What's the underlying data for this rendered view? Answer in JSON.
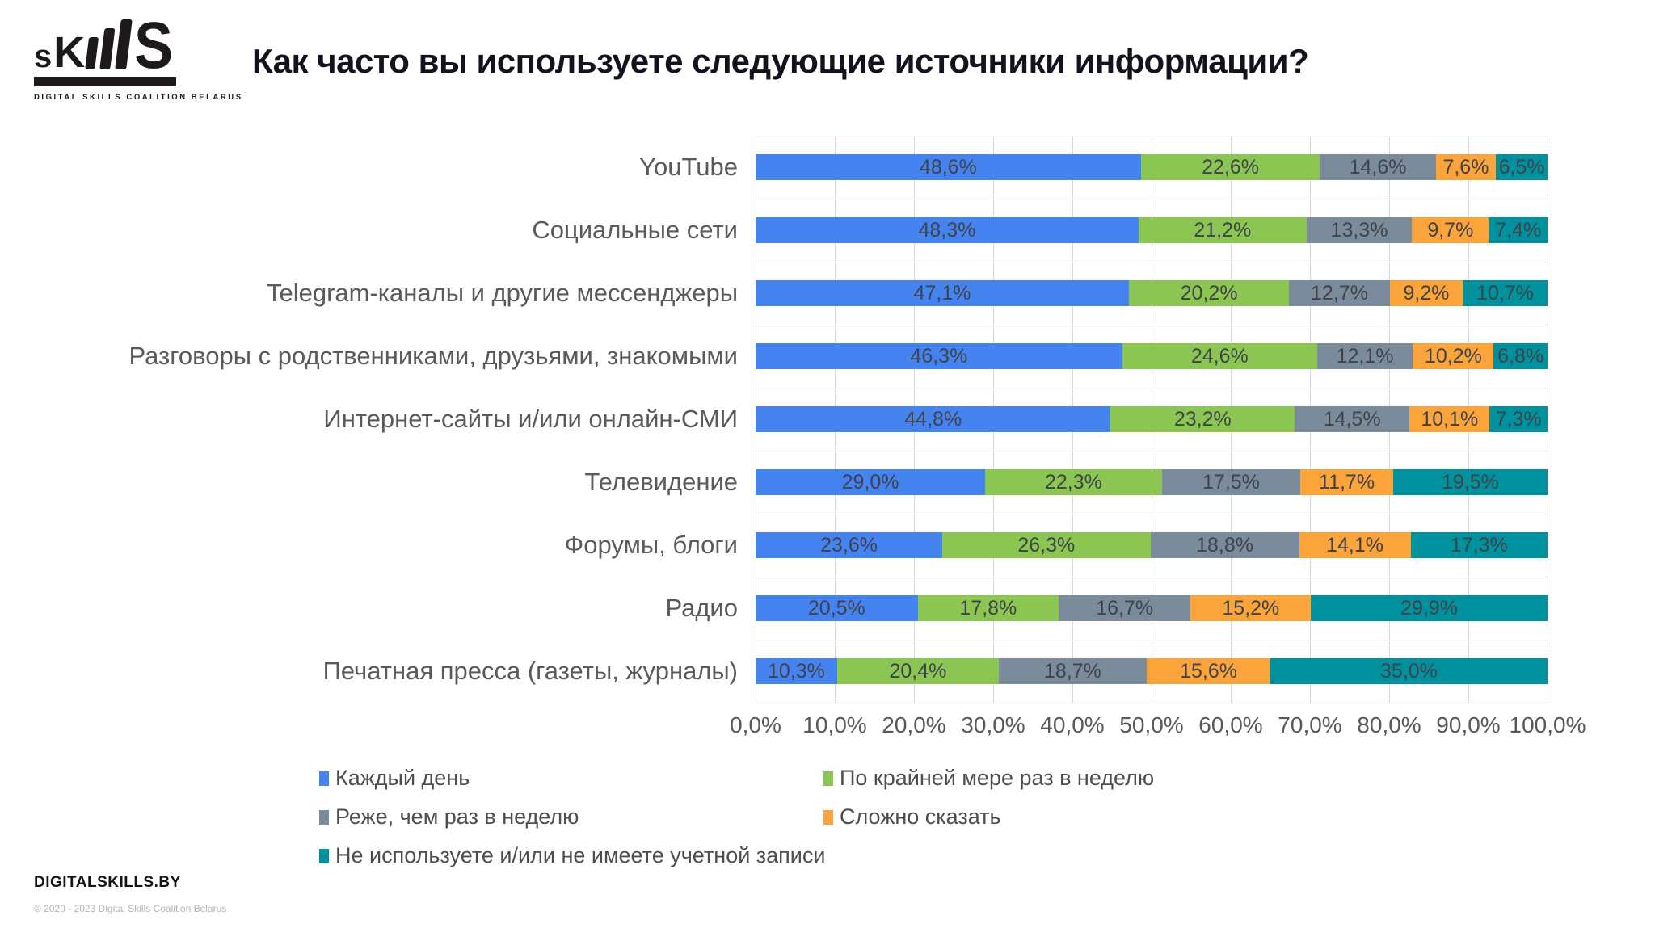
{
  "logo": {
    "text_left_s": "s",
    "text_k": "K",
    "text_big_s": "S",
    "subtext": "DIGITAL SKILLS COALITION BELARUS"
  },
  "title": "Как часто вы используете следующие источники информации?",
  "chart_data": {
    "type": "bar",
    "stacked": true,
    "orientation": "horizontal",
    "title": "Как часто вы используете следующие источники информации?",
    "categories": [
      "YouTube",
      "Социальные сети",
      "Telegram-каналы и другие мессенджеры",
      "Разговоры с родственниками, друзьями, знакомыми",
      "Интернет-сайты и/или онлайн-СМИ",
      "Телевидение",
      "Форумы, блоги",
      "Радио",
      "Печатная пресса (газеты, журналы)"
    ],
    "series": [
      {
        "name": "Каждый день",
        "color": "#4583f1",
        "values": [
          48.6,
          48.3,
          47.1,
          46.3,
          44.8,
          29.0,
          23.6,
          20.5,
          10.3
        ]
      },
      {
        "name": "По крайней мере раз в неделю",
        "color": "#8cc652",
        "values": [
          22.6,
          21.2,
          20.2,
          24.6,
          23.2,
          22.3,
          26.3,
          17.8,
          20.4
        ]
      },
      {
        "name": "Реже, чем раз в неделю",
        "color": "#7a8c9c",
        "values": [
          14.6,
          13.3,
          12.7,
          12.1,
          14.5,
          17.5,
          18.8,
          16.7,
          18.7
        ]
      },
      {
        "name": "Сложно сказать",
        "color": "#fba43c",
        "values": [
          7.6,
          9.7,
          9.2,
          10.2,
          10.1,
          11.7,
          14.1,
          15.2,
          15.6
        ]
      },
      {
        "name": "Не используете и/или не имеете учетной записи",
        "color": "#00919e",
        "values": [
          6.5,
          7.4,
          10.7,
          6.8,
          7.3,
          19.5,
          17.3,
          29.9,
          35.0
        ]
      }
    ],
    "xlim": [
      0,
      100
    ],
    "x_ticks": [
      "0,0%",
      "10,0%",
      "20,0%",
      "30,0%",
      "40,0%",
      "50,0%",
      "60,0%",
      "70,0%",
      "80,0%",
      "90,0%",
      "100,0%"
    ],
    "value_suffix": "%",
    "decimal_separator": ",",
    "grid": true,
    "legend_position": "bottom"
  },
  "footer": {
    "site": "DIGITALSKILLS.BY",
    "copyright": "© 2020 - 2023 Digital Skills Coalition Belarus"
  }
}
